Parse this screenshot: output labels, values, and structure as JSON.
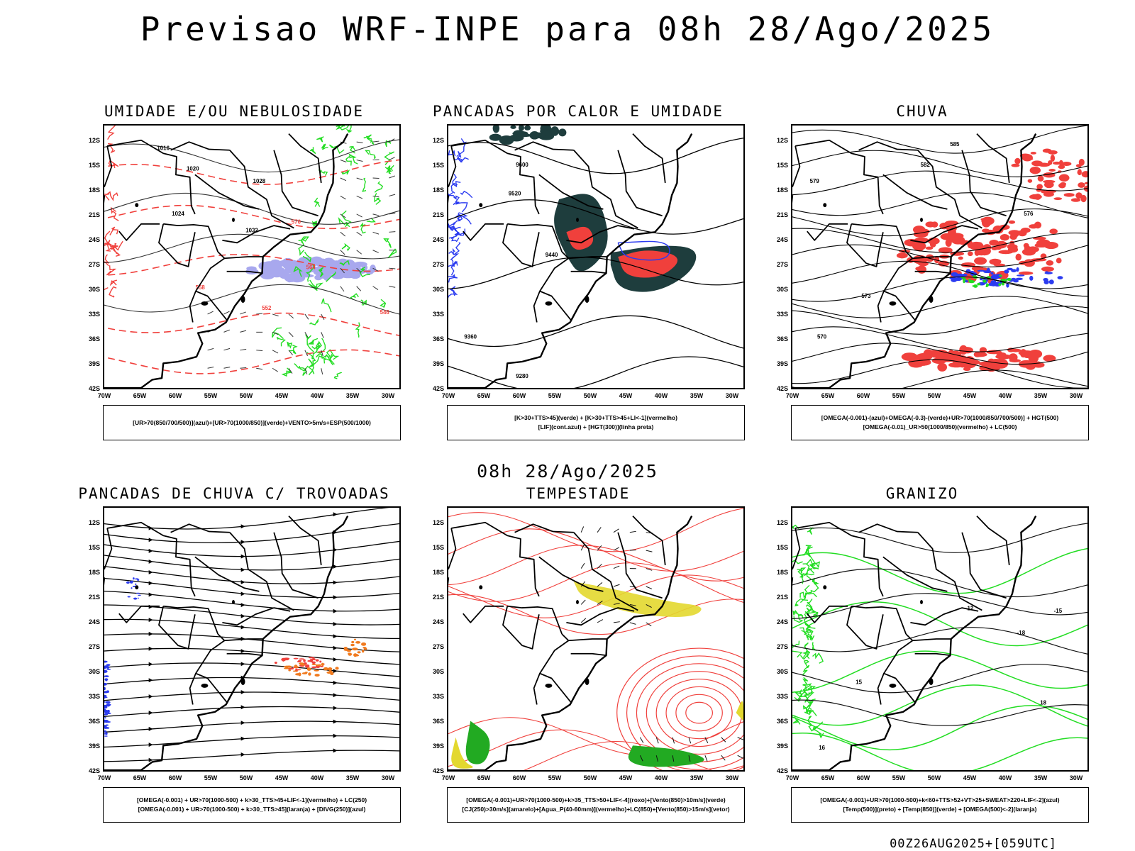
{
  "header": {
    "title": "Previsao WRF-INPE  para 08h 28/Ago/2025",
    "subtitle": "08h 28/Ago/2025",
    "footer": "00Z26AUG2025+[059UTC]"
  },
  "axes": {
    "lat_labels": [
      "12S",
      "15S",
      "18S",
      "21S",
      "24S",
      "27S",
      "30S",
      "33S",
      "36S",
      "39S",
      "42S"
    ],
    "lon_labels": [
      "70W",
      "65W",
      "60W",
      "55W",
      "50W",
      "45W",
      "40W",
      "35W",
      "30W"
    ]
  },
  "colors": {
    "coast": "#000000",
    "blue": "#2b3bf0",
    "green": "#22dd22",
    "red": "#f0403c",
    "orange": "#f07a1e",
    "yellow": "#e3d82f",
    "darkteal": "#1e3d3d",
    "lavender": "#a8a8ee"
  },
  "panels": [
    {
      "id": "umidade",
      "title": "UMIDADE E/OU NEBULOSIDADE",
      "legend": [
        "[UR>70(850/700/500)](azul)+[UR>70(1000/850)](verde)+VENTO>5m/s+ESP(500/1000)"
      ],
      "contour_labels": [
        "1016",
        "1020",
        "1024",
        "1028",
        "1032",
        "570",
        "564",
        "558",
        "552",
        "546"
      ]
    },
    {
      "id": "pancadas-calor",
      "title": "PANCADAS POR CALOR E UMIDADE",
      "legend": [
        "[K>30+TTS>45](verde) + [K>30+TTS>45+LI<-1](vermelho)",
        "[LIF](cont.azul) + [HGT(300)](linha preta)"
      ],
      "contour_labels": [
        "9600",
        "9520",
        "9440",
        "9360",
        "9280"
      ]
    },
    {
      "id": "chuva",
      "title": "CHUVA",
      "legend": [
        "[OMEGA(-0.001)-(azul)+OMEGA(-0.3)-(verde)+UR>70(1000/850/700/500)] + HGT(500)",
        "[OMEGA(-0.01)_UR>50(1000/850)(vermelho) + LC(500)"
      ],
      "contour_labels": [
        "585",
        "582",
        "579",
        "576",
        "573",
        "570"
      ]
    },
    {
      "id": "pancadas-trovoadas",
      "title": "PANCADAS DE CHUVA C/ TROVOADAS",
      "legend": [
        "[OMEGA(-0.001) + UR>70(1000-500) + k>30_TTS>45+LIF<-1](vermelho) + LC(250)",
        "[OMEGA(-0.001) + UR>70(1000-500) + k>30_TTS>45](laranja) + [DIVG(250)](azul)"
      ],
      "contour_labels": []
    },
    {
      "id": "tempestade",
      "title": "TEMPESTADE",
      "legend": [
        "[OMEGA(-0.001)+UR>70(1000-500)+k>35_TTS>50+LIF<-4](roxo)+[Vento(850)>10m/s](verde)",
        "[CJ(250)>30m/s](amarelo)+[Agua_P(40-60mm)](vermelho)+LC(850)+[Vento(850)>15m/s](vetor)"
      ],
      "contour_labels": []
    },
    {
      "id": "granizo",
      "title": "GRANIZO",
      "legend": [
        "[OMEGA(-0.001)+UR>70(1000-500)+k<60+TTS>52+VT>25+SWEAT>220+LIF<-2](azul)",
        "[Temp(500)](preto) + [Temp(850)](verde) + [OMEGA(500)<-2](laranja)"
      ],
      "contour_labels": [
        "-12",
        "-15",
        "-18",
        "15",
        "16",
        "18"
      ]
    }
  ]
}
